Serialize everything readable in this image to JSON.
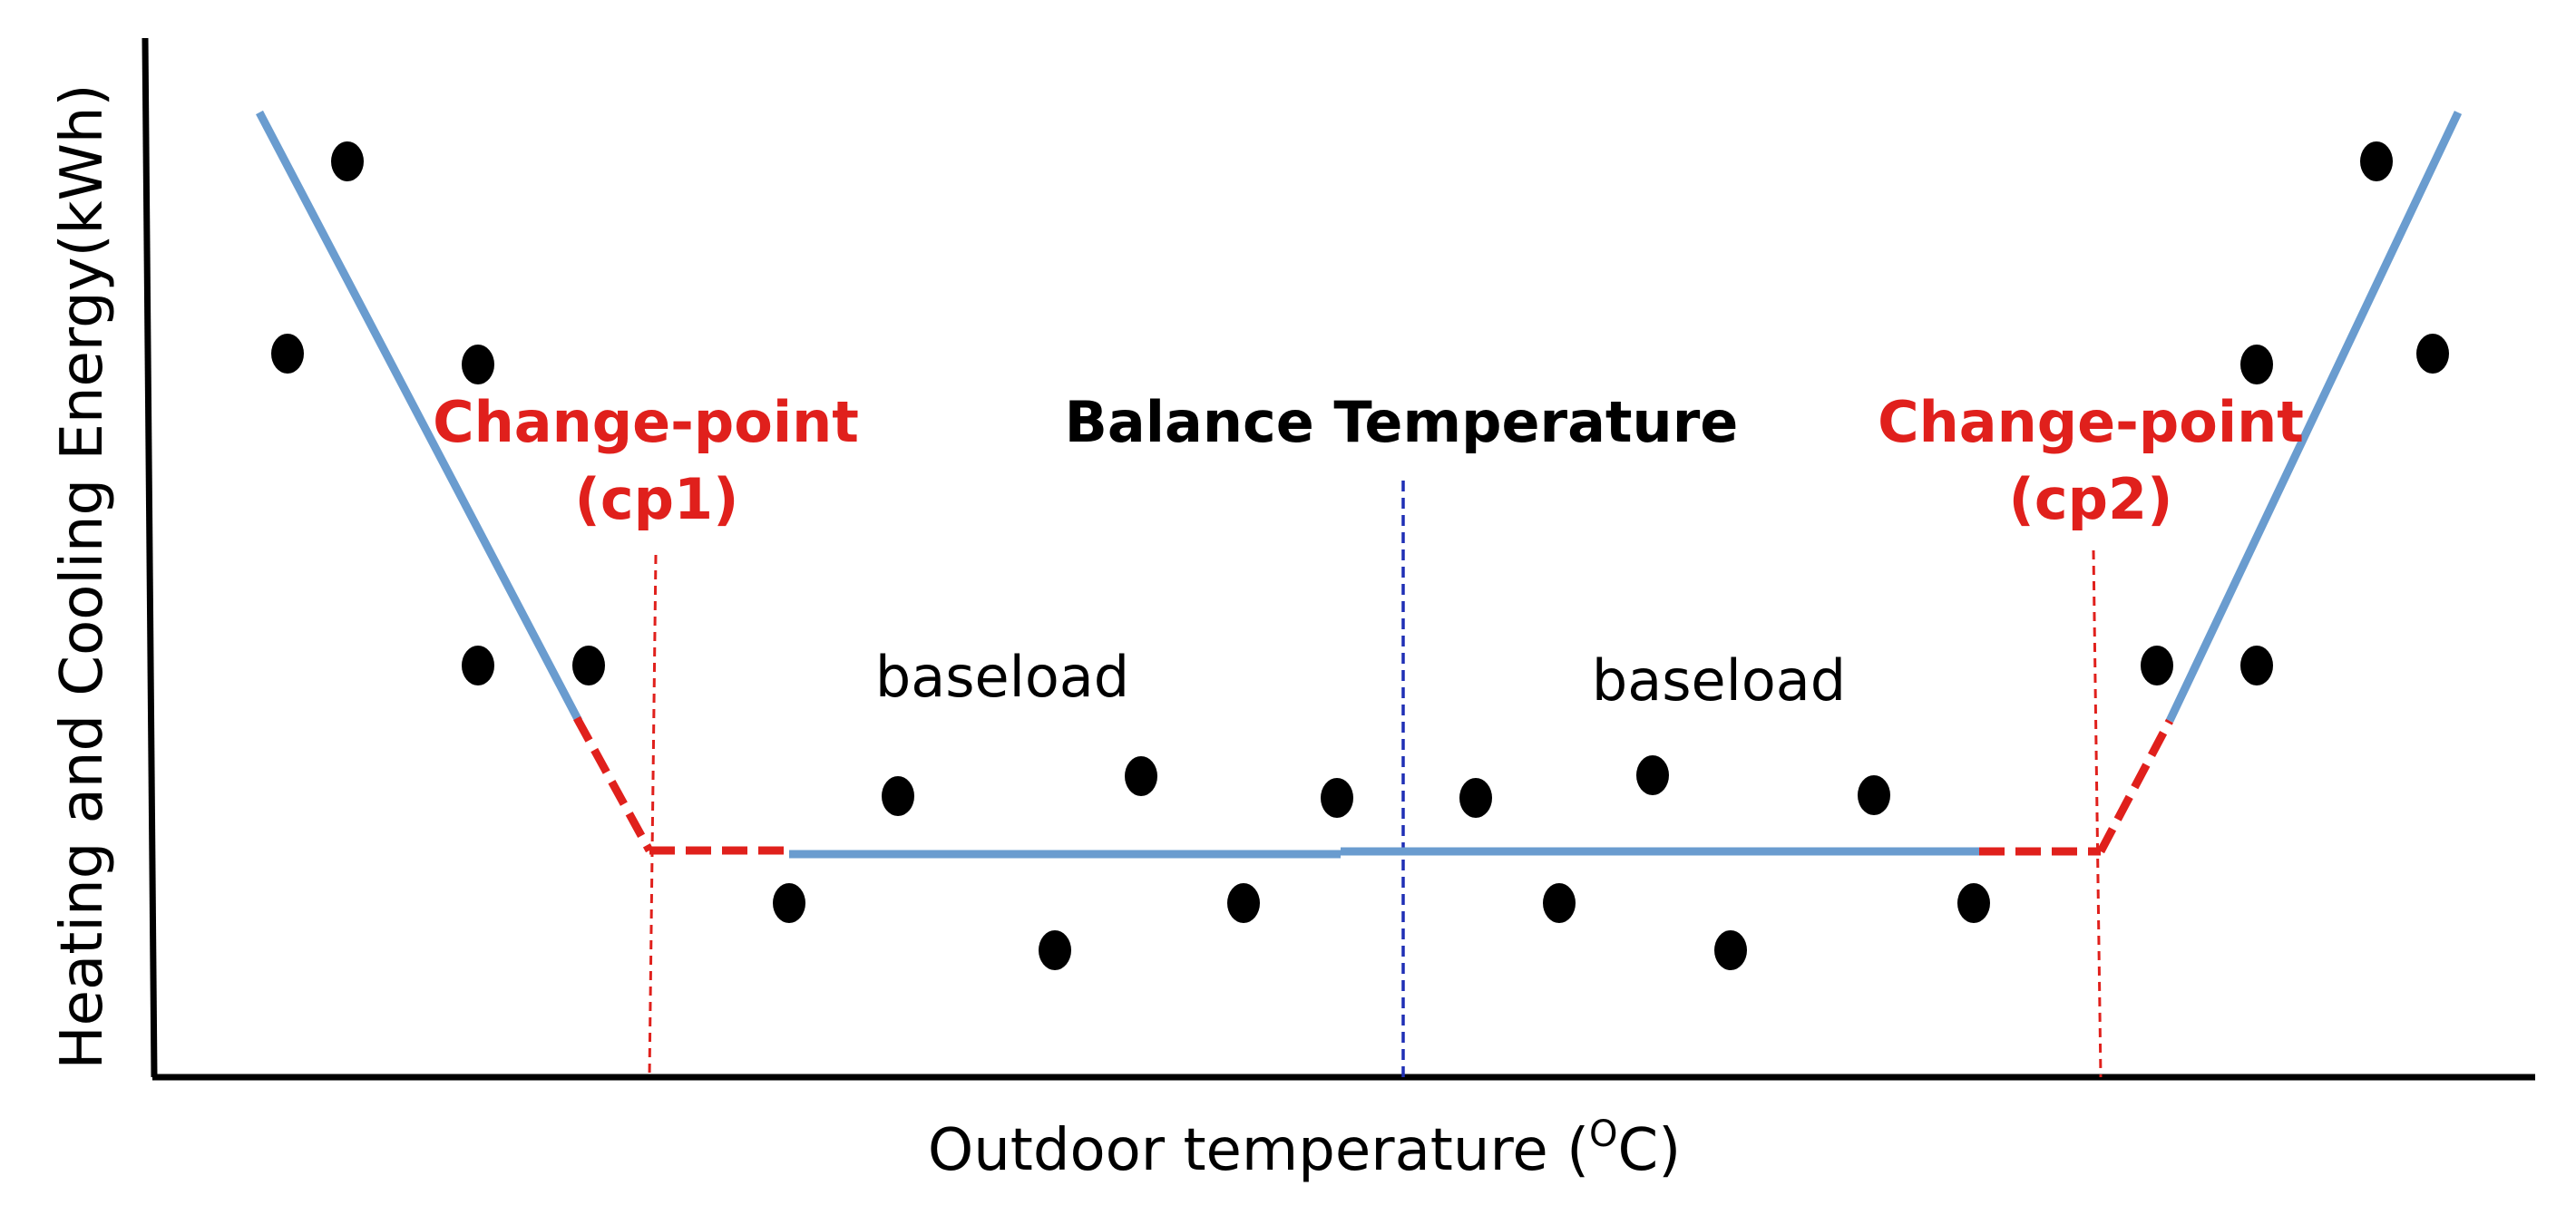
{
  "axes": {
    "x_label_prefix": "Outdoor temperature (",
    "x_label_sup": "O",
    "x_label_suffix": "C)",
    "y_label": "Heating and Cooling Energy(kWh)"
  },
  "annotations": {
    "change_point_1_line1": "Change-point",
    "change_point_1_line2": "(cp1)",
    "change_point_2_line1": "Change-point",
    "change_point_2_line2": "(cp2)",
    "balance_temperature": "Balance Temperature",
    "baseload_left": "baseload",
    "baseload_right": "baseload"
  },
  "colors": {
    "axis": "#000000",
    "fit_line": "#6a9ccf",
    "change_point": "#e0201c",
    "balance_line": "#1f2fb5",
    "points": "#000000"
  }
}
